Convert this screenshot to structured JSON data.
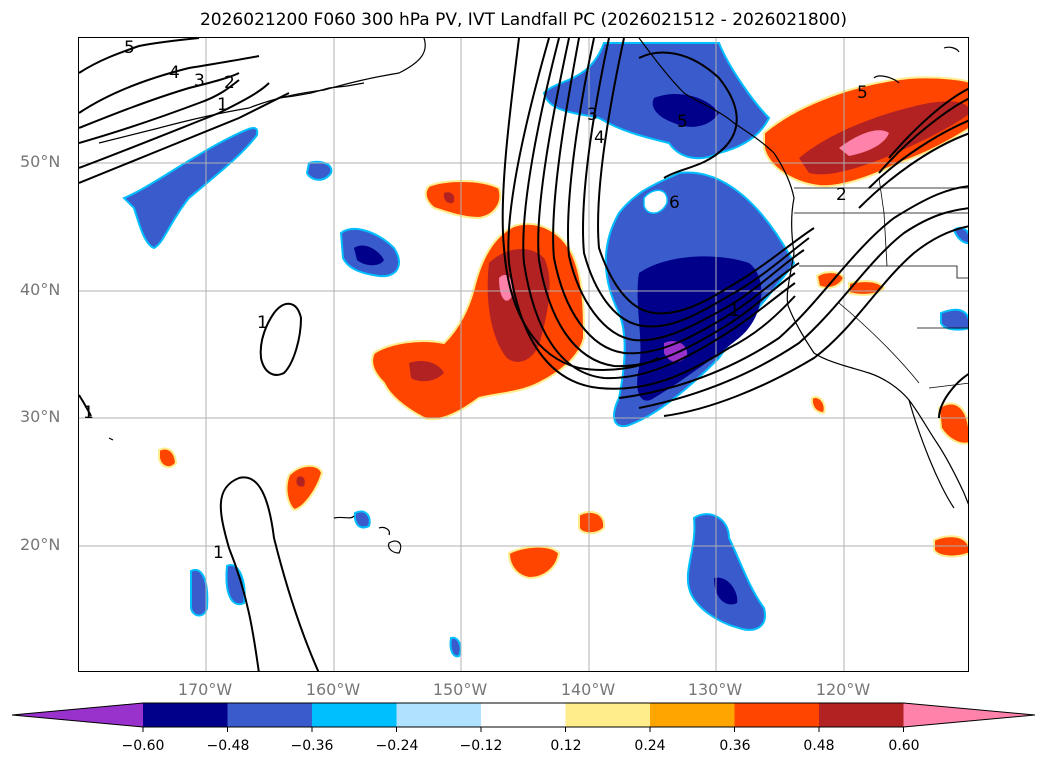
{
  "title": "2026021200 F060 300 hPa PV, IVT Landfall PC (2026021512 - 2026021800)",
  "latitude_labels": [
    "50°N",
    "40°N",
    "30°N",
    "20°N"
  ],
  "longitude_labels": [
    "170°W",
    "160°W",
    "150°W",
    "140°W",
    "130°W",
    "120°W"
  ],
  "colorbar": {
    "tick_labels": [
      "−0.60",
      "−0.48",
      "−0.36",
      "−0.24",
      "−0.12",
      "0.12",
      "0.24",
      "0.36",
      "0.48",
      "0.60"
    ],
    "colors": [
      "#9932cc",
      "#00008b",
      "#3a5bcc",
      "#00bfff",
      "#b0e2ff",
      "#ffffff",
      "#ffec8b",
      "#ffa500",
      "#ff4500",
      "#b22222",
      "#ff82ab"
    ],
    "extend": "both"
  },
  "contour_labels": [
    "5",
    "4",
    "3",
    "2",
    "1",
    "1",
    "1",
    "1",
    "3",
    "4",
    "5",
    "6",
    "1",
    "5",
    "2"
  ],
  "colors": {
    "grid": "#b0b0b0",
    "contour": "#000000",
    "coast": "#000000"
  }
}
